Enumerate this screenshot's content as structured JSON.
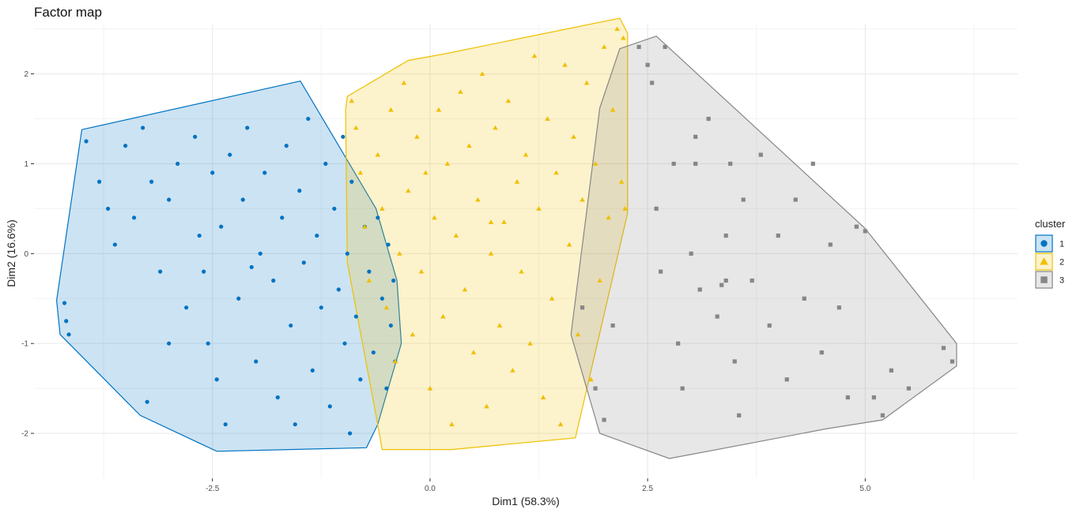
{
  "chart_data": {
    "type": "scatter",
    "title": "Factor map",
    "xlabel": "Dim1 (58.3%)",
    "ylabel": "Dim2 (16.6%)",
    "xlim": [
      -4.55,
      6.75
    ],
    "ylim": [
      -2.5,
      2.55
    ],
    "x_ticks": [
      -2.5,
      0.0,
      2.5,
      5.0
    ],
    "x_tick_labels": [
      "-2.5",
      "0.0",
      "2.5",
      "5.0"
    ],
    "y_ticks": [
      -2,
      -1,
      0,
      1,
      2
    ],
    "y_tick_labels": [
      "-2",
      "-1",
      "0",
      "1",
      "2"
    ],
    "grid": true,
    "legend": {
      "title": "cluster",
      "position": "right"
    },
    "series": [
      {
        "name": "1",
        "shape": "circle",
        "color": "#0073C2",
        "fill": "#0073C2",
        "hull": [
          [
            -1.49,
            1.92
          ],
          [
            -4.0,
            1.38
          ],
          [
            -4.29,
            -0.52
          ],
          [
            -4.25,
            -0.9
          ],
          [
            -3.33,
            -1.8
          ],
          [
            -2.45,
            -2.2
          ],
          [
            -0.73,
            -2.16
          ],
          [
            -0.6,
            -1.9
          ],
          [
            -0.33,
            -1.0
          ],
          [
            -0.38,
            -0.3
          ],
          [
            -0.62,
            0.5
          ]
        ],
        "points": [
          [
            -4.2,
            -0.55
          ],
          [
            -4.18,
            -0.75
          ],
          [
            -4.15,
            -0.9
          ],
          [
            -3.95,
            1.25
          ],
          [
            -3.8,
            0.8
          ],
          [
            -3.7,
            0.5
          ],
          [
            -3.62,
            0.1
          ],
          [
            -3.5,
            1.2
          ],
          [
            -3.4,
            0.4
          ],
          [
            -3.3,
            1.4
          ],
          [
            -3.2,
            0.8
          ],
          [
            -3.1,
            -0.2
          ],
          [
            -3.0,
            0.6
          ],
          [
            -3.0,
            -1.0
          ],
          [
            -2.9,
            1.0
          ],
          [
            -2.8,
            -0.6
          ],
          [
            -2.7,
            1.3
          ],
          [
            -2.65,
            0.2
          ],
          [
            -2.6,
            -0.2
          ],
          [
            -2.55,
            -1.0
          ],
          [
            -2.5,
            0.9
          ],
          [
            -2.45,
            -1.4
          ],
          [
            -2.4,
            0.3
          ],
          [
            -2.35,
            -1.9
          ],
          [
            -2.3,
            1.1
          ],
          [
            -2.2,
            -0.5
          ],
          [
            -2.15,
            0.6
          ],
          [
            -2.1,
            1.4
          ],
          [
            -2.0,
            -1.2
          ],
          [
            -1.95,
            0.0
          ],
          [
            -1.9,
            0.9
          ],
          [
            -1.8,
            -0.3
          ],
          [
            -1.75,
            -1.6
          ],
          [
            -1.7,
            0.4
          ],
          [
            -1.65,
            1.2
          ],
          [
            -1.6,
            -0.8
          ],
          [
            -1.55,
            -1.9
          ],
          [
            -1.5,
            0.7
          ],
          [
            -1.45,
            -0.1
          ],
          [
            -1.4,
            1.5
          ],
          [
            -1.35,
            -1.3
          ],
          [
            -1.3,
            0.2
          ],
          [
            -1.25,
            -0.6
          ],
          [
            -1.2,
            1.0
          ],
          [
            -1.15,
            -1.7
          ],
          [
            -1.1,
            0.5
          ],
          [
            -1.05,
            -0.4
          ],
          [
            -1.0,
            1.3
          ],
          [
            -0.98,
            -1.0
          ],
          [
            -0.95,
            0.0
          ],
          [
            -0.92,
            -2.0
          ],
          [
            -0.9,
            0.8
          ],
          [
            -0.85,
            -0.7
          ],
          [
            -0.8,
            -1.4
          ],
          [
            -0.75,
            0.3
          ],
          [
            -0.7,
            -0.2
          ],
          [
            -0.65,
            -1.1
          ],
          [
            -0.6,
            0.4
          ],
          [
            -0.55,
            -0.5
          ],
          [
            -0.5,
            -1.5
          ],
          [
            -0.48,
            0.1
          ],
          [
            -0.45,
            -0.8
          ],
          [
            -0.42,
            -0.3
          ],
          [
            -0.4,
            -1.2
          ],
          [
            -2.05,
            -0.15
          ],
          [
            -3.25,
            -1.65
          ]
        ]
      },
      {
        "name": "2",
        "shape": "triangle",
        "color": "#EFC000",
        "fill": "#EFC000",
        "hull": [
          [
            -0.95,
            1.75
          ],
          [
            -0.25,
            2.15
          ],
          [
            0.15,
            2.22
          ],
          [
            2.18,
            2.62
          ],
          [
            2.27,
            2.45
          ],
          [
            2.27,
            0.45
          ],
          [
            1.67,
            -2.05
          ],
          [
            0.25,
            -2.18
          ],
          [
            -0.55,
            -2.18
          ],
          [
            -0.62,
            -1.8
          ],
          [
            -0.95,
            -0.1
          ],
          [
            -0.97,
            1.6
          ]
        ],
        "points": [
          [
            -0.9,
            1.7
          ],
          [
            -0.85,
            1.4
          ],
          [
            -0.8,
            0.9
          ],
          [
            -0.75,
            0.3
          ],
          [
            -0.7,
            -0.3
          ],
          [
            -0.6,
            1.1
          ],
          [
            -0.55,
            0.5
          ],
          [
            -0.5,
            -0.6
          ],
          [
            -0.45,
            1.6
          ],
          [
            -0.4,
            -1.2
          ],
          [
            -0.35,
            0.0
          ],
          [
            -0.3,
            1.9
          ],
          [
            -0.25,
            0.7
          ],
          [
            -0.2,
            -0.9
          ],
          [
            -0.15,
            1.3
          ],
          [
            -0.1,
            -0.2
          ],
          [
            -0.05,
            0.9
          ],
          [
            0.0,
            -1.5
          ],
          [
            0.05,
            0.4
          ],
          [
            0.1,
            1.6
          ],
          [
            0.15,
            -0.7
          ],
          [
            0.2,
            1.0
          ],
          [
            0.25,
            -1.9
          ],
          [
            0.3,
            0.2
          ],
          [
            0.35,
            1.8
          ],
          [
            0.4,
            -0.4
          ],
          [
            0.45,
            1.2
          ],
          [
            0.5,
            -1.1
          ],
          [
            0.55,
            0.6
          ],
          [
            0.6,
            2.0
          ],
          [
            0.65,
            -1.7
          ],
          [
            0.7,
            0.0
          ],
          [
            0.75,
            1.4
          ],
          [
            0.8,
            -0.8
          ],
          [
            0.85,
            0.35
          ],
          [
            0.9,
            1.7
          ],
          [
            0.95,
            -1.3
          ],
          [
            1.0,
            0.8
          ],
          [
            1.05,
            -0.2
          ],
          [
            1.1,
            1.1
          ],
          [
            1.15,
            -1.0
          ],
          [
            1.2,
            2.2
          ],
          [
            1.25,
            0.5
          ],
          [
            1.3,
            -1.6
          ],
          [
            1.35,
            1.5
          ],
          [
            1.4,
            -0.5
          ],
          [
            1.45,
            0.9
          ],
          [
            1.5,
            -1.9
          ],
          [
            1.55,
            2.1
          ],
          [
            1.6,
            0.1
          ],
          [
            1.65,
            1.3
          ],
          [
            1.7,
            -0.9
          ],
          [
            1.75,
            0.6
          ],
          [
            1.8,
            1.9
          ],
          [
            1.85,
            -1.4
          ],
          [
            1.9,
            1.0
          ],
          [
            1.95,
            -0.3
          ],
          [
            2.0,
            2.3
          ],
          [
            2.05,
            0.4
          ],
          [
            2.1,
            1.6
          ],
          [
            2.15,
            2.5
          ],
          [
            2.2,
            0.8
          ],
          [
            2.22,
            2.4
          ],
          [
            2.24,
            0.5
          ],
          [
            0.7,
            0.35
          ]
        ]
      },
      {
        "name": "3",
        "shape": "square",
        "color": "#868686",
        "fill": "#868686",
        "hull": [
          [
            2.6,
            2.42
          ],
          [
            2.18,
            2.28
          ],
          [
            1.95,
            1.62
          ],
          [
            1.62,
            -0.9
          ],
          [
            1.95,
            -2.0
          ],
          [
            2.75,
            -2.28
          ],
          [
            4.55,
            -1.95
          ],
          [
            5.2,
            -1.85
          ],
          [
            6.05,
            -1.25
          ],
          [
            6.05,
            -1.0
          ],
          [
            5.0,
            0.28
          ]
        ],
        "points": [
          [
            2.4,
            2.3
          ],
          [
            2.5,
            2.1
          ],
          [
            2.55,
            1.9
          ],
          [
            2.7,
            2.3
          ],
          [
            2.6,
            0.5
          ],
          [
            2.65,
            -0.2
          ],
          [
            2.8,
            1.0
          ],
          [
            2.85,
            -1.0
          ],
          [
            2.9,
            -1.5
          ],
          [
            3.0,
            0.0
          ],
          [
            3.05,
            1.3
          ],
          [
            3.1,
            -0.4
          ],
          [
            3.2,
            1.5
          ],
          [
            3.3,
            -0.7
          ],
          [
            3.4,
            0.2
          ],
          [
            3.45,
            1.0
          ],
          [
            3.5,
            -1.2
          ],
          [
            3.55,
            -1.8
          ],
          [
            3.6,
            0.6
          ],
          [
            3.7,
            -0.3
          ],
          [
            3.8,
            1.1
          ],
          [
            3.9,
            -0.8
          ],
          [
            4.0,
            0.2
          ],
          [
            4.1,
            -1.4
          ],
          [
            4.2,
            0.6
          ],
          [
            4.3,
            -0.5
          ],
          [
            4.4,
            1.0
          ],
          [
            4.5,
            -1.1
          ],
          [
            4.6,
            0.1
          ],
          [
            4.7,
            -0.6
          ],
          [
            4.8,
            -1.6
          ],
          [
            4.9,
            0.3
          ],
          [
            5.0,
            0.25
          ],
          [
            5.1,
            -1.6
          ],
          [
            5.2,
            -1.8
          ],
          [
            5.3,
            -1.3
          ],
          [
            5.5,
            -1.5
          ],
          [
            5.9,
            -1.05
          ],
          [
            6.0,
            -1.2
          ],
          [
            2.0,
            -1.85
          ],
          [
            1.9,
            -1.5
          ],
          [
            1.75,
            -0.6
          ],
          [
            2.1,
            -0.8
          ],
          [
            3.05,
            1.0
          ],
          [
            3.4,
            -0.3
          ],
          [
            3.35,
            -0.35
          ]
        ]
      }
    ]
  }
}
